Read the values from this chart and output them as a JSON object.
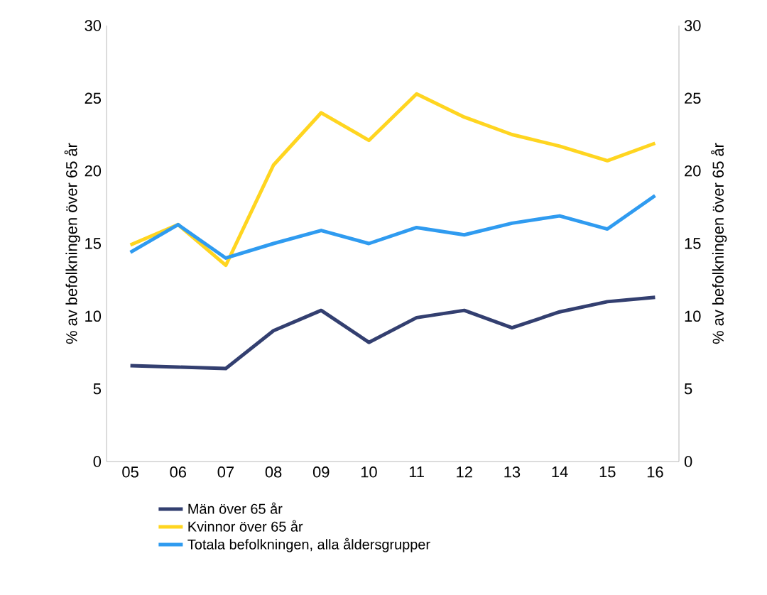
{
  "chart_data": {
    "type": "line",
    "categories": [
      "05",
      "06",
      "07",
      "08",
      "09",
      "10",
      "11",
      "12",
      "13",
      "14",
      "15",
      "16"
    ],
    "series": [
      {
        "name": "Män över 65 år",
        "color": "#333f70",
        "values": [
          6.6,
          6.5,
          6.4,
          9.0,
          10.4,
          8.2,
          9.9,
          10.4,
          9.2,
          10.3,
          11.0,
          11.3
        ]
      },
      {
        "name": "Kvinnor över 65 år",
        "color": "#ffd520",
        "values": [
          14.9,
          16.3,
          13.5,
          20.4,
          24.0,
          22.1,
          25.3,
          23.7,
          22.5,
          21.7,
          20.7,
          21.9
        ]
      },
      {
        "name": "Totala befolkningen, alla åldersgrupper",
        "color": "#2f9bf0",
        "values": [
          14.4,
          16.3,
          14.0,
          15.0,
          15.9,
          15.0,
          16.1,
          15.6,
          16.4,
          16.9,
          16.0,
          18.3
        ]
      }
    ],
    "ylabel": "% av befolkningen över 65 år",
    "y2label": "% av befolkningen över 65 år",
    "ylim": [
      0,
      30
    ],
    "yticks": [
      0,
      5,
      10,
      15,
      20,
      25,
      30
    ],
    "y2lim": [
      0,
      30
    ],
    "y2ticks": [
      0,
      5,
      10,
      15,
      20,
      25,
      30
    ],
    "grid": false,
    "legend": "bottom",
    "marker": "none",
    "line_style": "solid"
  }
}
